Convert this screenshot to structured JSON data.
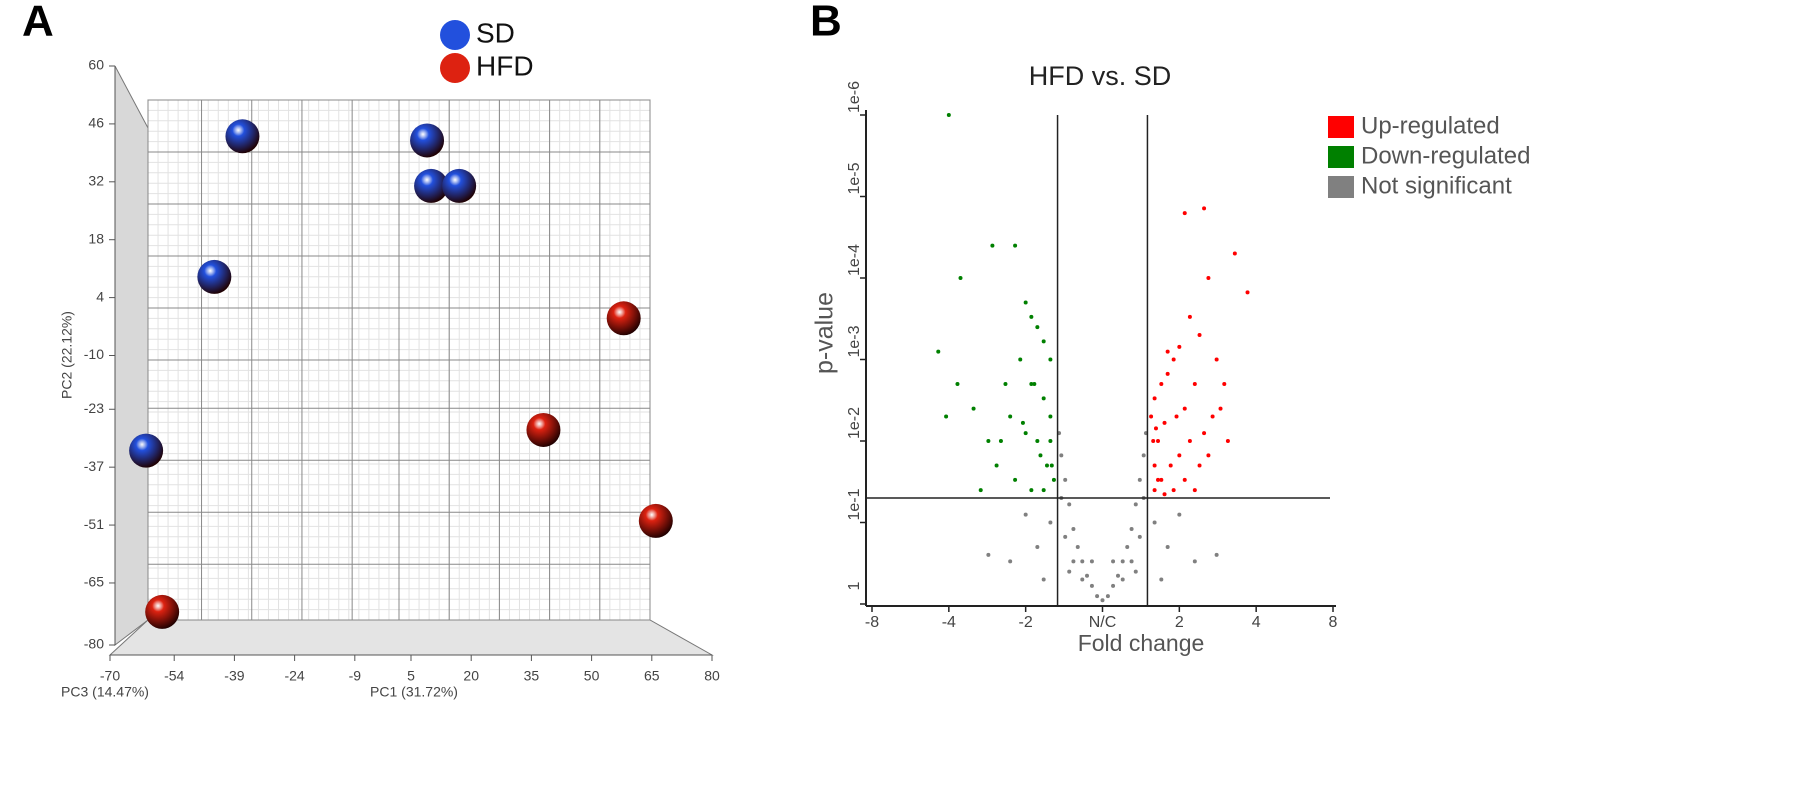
{
  "chart_data": [
    {
      "type": "scatter3d",
      "panel_label": "A",
      "x_label": "PC1 (31.72%)",
      "y_label": "PC2 (22.12%)",
      "z_label": "PC3 (14.47%)",
      "xlim": [
        -70,
        80
      ],
      "xticks": [
        -70,
        -54,
        -39,
        -24,
        -9,
        5,
        20,
        35,
        50,
        65,
        80
      ],
      "ylim": [
        -80,
        60
      ],
      "yticks": [
        60,
        46,
        32,
        18,
        4,
        -10,
        -23,
        -37,
        -51,
        -65,
        -80
      ],
      "grid": true,
      "series": [
        {
          "name": "SD",
          "color": "#2250dd",
          "x": [
            -37,
            9,
            10,
            17,
            -44,
            -61
          ],
          "y": [
            43,
            42,
            31,
            31,
            9,
            -33
          ]
        },
        {
          "name": "HFD",
          "color": "#dd2211",
          "x": [
            58,
            38,
            66,
            -57
          ],
          "y": [
            -1,
            -28,
            -50,
            -72
          ]
        }
      ]
    },
    {
      "type": "scatter",
      "panel_label": "B",
      "title": "HFD vs. SD",
      "x_label": "Fold change",
      "y_label": "p-value",
      "xscale": "signed-log2",
      "yscale": "log",
      "xlim": [
        -8,
        8
      ],
      "xticks": [
        -8,
        -4,
        -2,
        {
          "value": 1,
          "label": "N/C"
        },
        2,
        4,
        8
      ],
      "ylim": [
        1,
        1e-06
      ],
      "yticks": [
        {
          "value": 1e-06,
          "label": "1e-6"
        },
        {
          "value": 1e-05,
          "label": "1e-5"
        },
        {
          "value": 0.0001,
          "label": "1e-4"
        },
        {
          "value": 0.001,
          "label": "1e-3"
        },
        {
          "value": 0.01,
          "label": "1e-2"
        },
        {
          "value": 0.1,
          "label": "1e-1"
        },
        1
      ],
      "xlines": [
        -1.5,
        1.5
      ],
      "ylines": [
        0.05
      ],
      "series": [
        {
          "name": "Up-regulated",
          "color": "#ff0000",
          "x": [
            2.1,
            2.5,
            3.3,
            3.7,
            2.6,
            2.4,
            2.2,
            2.0,
            1.9,
            1.8,
            1.7,
            1.6,
            1.55,
            2.8,
            3.0,
            2.3,
            2.1,
            1.95,
            1.75,
            1.65,
            1.6,
            2.7,
            2.5,
            2.2,
            2.0,
            1.85,
            1.7,
            1.6,
            1.58,
            3.1,
            2.9,
            2.4,
            2.1,
            1.9,
            1.75,
            1.65,
            2.6,
            2.3,
            1.8,
            1.62
          ],
          "values": [
            1.6e-05,
            1.4e-05,
            5e-05,
            0.00015,
            0.0001,
            0.0005,
            0.0003,
            0.0007,
            0.001,
            0.0008,
            0.002,
            0.003,
            0.005,
            0.001,
            0.002,
            0.002,
            0.004,
            0.005,
            0.006,
            0.01,
            0.02,
            0.005,
            0.008,
            0.01,
            0.015,
            0.02,
            0.03,
            0.04,
            0.01,
            0.01,
            0.004,
            0.02,
            0.03,
            0.04,
            0.045,
            0.03,
            0.015,
            0.04,
            0.0015,
            0.007
          ]
        },
        {
          "name": "Down-regulated",
          "color": "#008000",
          "x": [
            -4.0,
            -3.6,
            -2.7,
            -2.2,
            -2.0,
            -1.9,
            -1.8,
            -1.7,
            -1.6,
            -2.4,
            -2.1,
            -1.9,
            -1.7,
            -1.6,
            -2.3,
            -2.0,
            -1.8,
            -1.65,
            -1.55,
            -2.6,
            -3.0,
            -4.4,
            -3.7,
            -4.1,
            -2.5,
            -1.75,
            -1.6,
            -2.2,
            -1.9,
            -1.7,
            -1.58,
            -3.2,
            -2.8,
            -2.05,
            -1.85
          ],
          "values": [
            1e-06,
            0.0001,
            4e-05,
            4e-05,
            0.0002,
            0.0003,
            0.0004,
            0.0006,
            0.001,
            0.002,
            0.001,
            0.002,
            0.003,
            0.005,
            0.005,
            0.008,
            0.01,
            0.02,
            0.03,
            0.02,
            0.04,
            0.0008,
            0.002,
            0.005,
            0.01,
            0.015,
            0.01,
            0.03,
            0.04,
            0.04,
            0.02,
            0.004,
            0.01,
            0.006,
            0.002
          ]
        },
        {
          "name": "Not significant",
          "color": "#808080",
          "x": [
            1,
            1.05,
            -1.05,
            1.1,
            -1.1,
            1.15,
            -1.15,
            1.2,
            -1.2,
            1.25,
            -1.25,
            1.3,
            -1.3,
            1.35,
            -1.35,
            1.4,
            -1.4,
            1.45,
            -1.45,
            1.48,
            -1.48,
            1.2,
            -1.2,
            1.3,
            -1.3,
            1.4,
            -1.4,
            1.6,
            -1.6,
            1.8,
            -1.8,
            2.0,
            -2.0,
            2.3,
            -2.3,
            1.7,
            -1.7,
            2.8,
            -2.8,
            1.1,
            -1.1,
            1.35,
            -1.35,
            -1.45,
            1.45
          ],
          "values": [
            0.9,
            0.8,
            0.8,
            0.6,
            0.6,
            0.45,
            0.45,
            0.3,
            0.3,
            0.2,
            0.2,
            0.12,
            0.12,
            0.06,
            0.06,
            0.03,
            0.03,
            0.015,
            0.015,
            0.008,
            0.008,
            0.5,
            0.5,
            0.3,
            0.3,
            0.15,
            0.15,
            0.1,
            0.1,
            0.2,
            0.2,
            0.08,
            0.08,
            0.3,
            0.3,
            0.5,
            0.5,
            0.25,
            0.25,
            0.3,
            0.3,
            0.4,
            0.4,
            0.05,
            0.05
          ]
        }
      ]
    }
  ]
}
